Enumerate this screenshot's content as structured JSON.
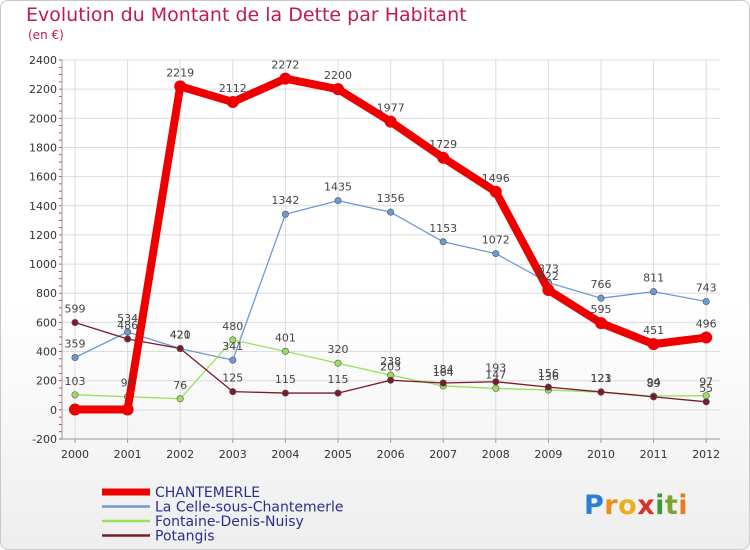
{
  "chart_data": {
    "type": "line",
    "title": "Evolution du Montant de la Dette par Habitant",
    "subtitle": "(en €)",
    "xlabel": "",
    "ylabel": "",
    "categories": [
      "2000",
      "2001",
      "2002",
      "2003",
      "2004",
      "2005",
      "2006",
      "2007",
      "2008",
      "2009",
      "2010",
      "2011",
      "2012"
    ],
    "ylim": [
      -200,
      2400
    ],
    "yticks": [
      -200,
      0,
      200,
      400,
      600,
      800,
      1000,
      1200,
      1400,
      1600,
      1800,
      2000,
      2200,
      2400
    ],
    "grid": true,
    "legend_position": "bottom-left",
    "series": [
      {
        "name": "CHANTEMERLE",
        "color": "#ee0000",
        "values": [
          2,
          2,
          2219,
          2112,
          2272,
          2200,
          1977,
          1729,
          1496,
          822,
          595,
          451,
          496
        ],
        "labels": [
          "",
          "",
          "2219",
          "2112",
          "2272",
          "2200",
          "1977",
          "1729",
          "1496",
          "822",
          "595",
          "451",
          "496"
        ]
      },
      {
        "name": "La Celle-sous-Chantemerle",
        "color": "#6b9bd2",
        "values": [
          359,
          534,
          420,
          341,
          1342,
          1435,
          1356,
          1153,
          1072,
          873,
          766,
          811,
          743
        ],
        "labels": [
          "359",
          "534",
          "420",
          "341",
          "1342",
          "1435",
          "1356",
          "1153",
          "1072",
          "873",
          "766",
          "811",
          "743"
        ]
      },
      {
        "name": "Fontaine-Denis-Nuisy",
        "color": "#99e05a",
        "values": [
          103,
          90,
          76,
          480,
          401,
          320,
          238,
          164,
          147,
          136,
          121,
          94,
          97
        ],
        "labels": [
          "103",
          "90",
          "76",
          "480",
          "401",
          "320",
          "238",
          "164",
          "147",
          "136",
          "121",
          "94",
          "97"
        ]
      },
      {
        "name": "Potangis",
        "color": "#7a1a2a",
        "values": [
          599,
          486,
          421,
          125,
          115,
          115,
          203,
          184,
          193,
          156,
          123,
          89,
          55
        ],
        "labels": [
          "599",
          "486",
          "421",
          "125",
          "115",
          "115",
          "203",
          "184",
          "193",
          "156",
          "123",
          "89",
          "55"
        ]
      }
    ]
  },
  "branding": {
    "logo_letters": [
      "P",
      "r",
      "o",
      "x",
      "i",
      "t",
      "i"
    ],
    "logo_colors": [
      "#2a7fd4",
      "#f08c1a",
      "#e8b020",
      "#d8332a",
      "#3a9a3a",
      "#7aa630",
      "#e87a20"
    ]
  }
}
